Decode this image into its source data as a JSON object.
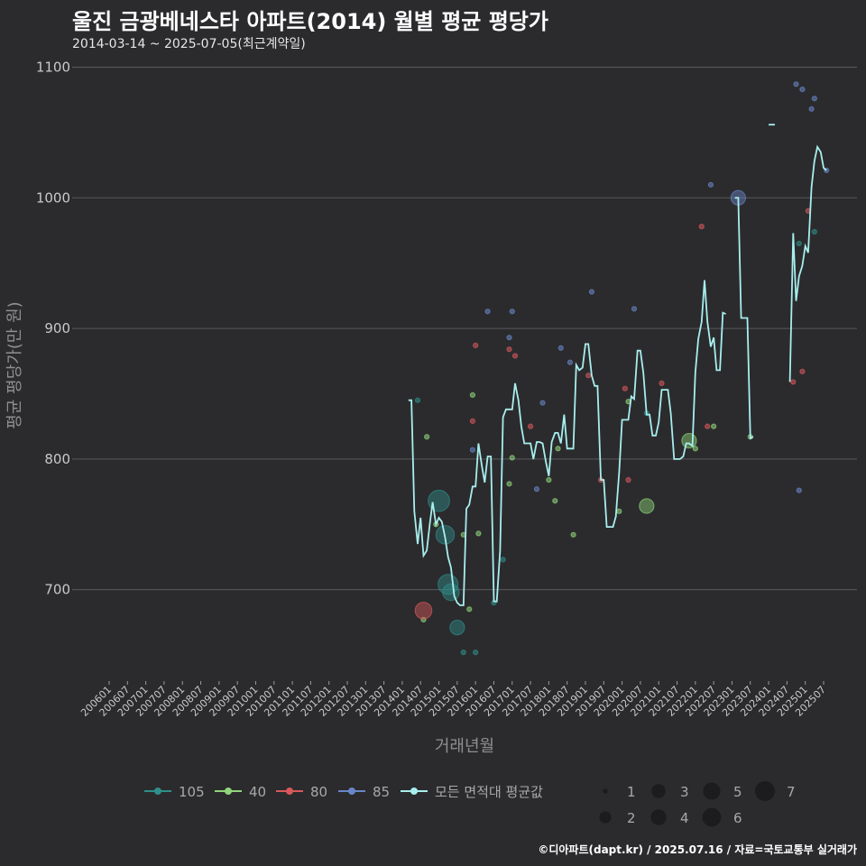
{
  "header": {
    "title": "울진 금광베네스타 아파트(2014) 월별 평균 평당가",
    "subtitle": "2014-03-14 ~ 2025-07-05(최근계약일)"
  },
  "caption": "©디아파트(dapt.kr) / 2025.07.16 / 자료=국토교통부 실거래가",
  "colors": {
    "background": "#2b2b2d",
    "grid": "#5a5a5c",
    "avg_line": "#a8eeee",
    "s105": "#2f8f8a",
    "s40": "#8fd67a",
    "s80": "#d9585c",
    "s85": "#6a86c8"
  },
  "chart_data": {
    "type": "scatter+line",
    "title": "울진 금광베네스타 아파트(2014) 월별 평균 평당가",
    "xlabel": "거래년월",
    "ylabel": "평균 평당가(만 원)",
    "ylim": [
      630,
      1110
    ],
    "yticks": [
      700,
      800,
      900,
      1000,
      1100
    ],
    "x_tick_labels": [
      "200601",
      "200607",
      "200701",
      "200707",
      "200801",
      "200807",
      "200901",
      "200907",
      "201001",
      "201007",
      "201101",
      "201107",
      "201201",
      "201207",
      "201301",
      "201307",
      "201401",
      "201407",
      "201501",
      "201507",
      "201601",
      "201607",
      "201701",
      "201707",
      "201801",
      "201807",
      "201901",
      "201907",
      "202001",
      "202007",
      "202101",
      "202107",
      "202201",
      "202207",
      "202301",
      "202307",
      "202401",
      "202407",
      "202501",
      "202507"
    ],
    "x_unit": "fractional year",
    "xlim": [
      2006.0,
      2025.5
    ],
    "legend_area": [
      {
        "name": "105",
        "color_key": "s105"
      },
      {
        "name": "40",
        "color_key": "s40"
      },
      {
        "name": "80",
        "color_key": "s80"
      },
      {
        "name": "85",
        "color_key": "s85"
      },
      {
        "name": "모든 면적대 평균값",
        "color_key": "avg_line"
      }
    ],
    "legend_size": [
      {
        "label": "1",
        "value": 1
      },
      {
        "label": "2",
        "value": 2
      },
      {
        "label": "3",
        "value": 3
      },
      {
        "label": "4",
        "value": 4
      },
      {
        "label": "5",
        "value": 5
      },
      {
        "label": "6",
        "value": 6
      },
      {
        "label": "7",
        "value": 7
      }
    ],
    "avg_line": [
      [
        2014.17,
        845
      ],
      [
        2014.25,
        845
      ],
      [
        2014.33,
        760
      ],
      [
        2014.42,
        735
      ],
      [
        2014.5,
        755
      ],
      [
        2014.58,
        726
      ],
      [
        2014.67,
        730
      ],
      [
        2014.75,
        750
      ],
      [
        2014.83,
        767
      ],
      [
        2014.92,
        750
      ],
      [
        2015.0,
        755
      ],
      [
        2015.08,
        752
      ],
      [
        2015.17,
        740
      ],
      [
        2015.25,
        725
      ],
      [
        2015.33,
        717
      ],
      [
        2015.42,
        695
      ],
      [
        2015.5,
        690
      ],
      [
        2015.58,
        688
      ],
      [
        2015.67,
        688
      ],
      [
        2015.75,
        762
      ],
      [
        2015.83,
        765
      ],
      [
        2015.92,
        779
      ],
      [
        2016.0,
        779
      ],
      [
        2016.08,
        812
      ],
      [
        2016.17,
        795
      ],
      [
        2016.25,
        782
      ],
      [
        2016.33,
        802
      ],
      [
        2016.42,
        802
      ],
      [
        2016.5,
        691
      ],
      [
        2016.58,
        691
      ],
      [
        2016.67,
        730
      ],
      [
        2016.75,
        832
      ],
      [
        2016.83,
        838
      ],
      [
        2016.92,
        838
      ],
      [
        2017.0,
        838
      ],
      [
        2017.08,
        858
      ],
      [
        2017.17,
        845
      ],
      [
        2017.25,
        825
      ],
      [
        2017.33,
        812
      ],
      [
        2017.42,
        812
      ],
      [
        2017.5,
        812
      ],
      [
        2017.58,
        800
      ],
      [
        2017.67,
        813
      ],
      [
        2017.75,
        813
      ],
      [
        2017.83,
        812
      ],
      [
        2017.92,
        798
      ],
      [
        2018.0,
        787
      ],
      [
        2018.08,
        813
      ],
      [
        2018.17,
        820
      ],
      [
        2018.25,
        820
      ],
      [
        2018.33,
        812
      ],
      [
        2018.42,
        834
      ],
      [
        2018.5,
        808
      ],
      [
        2018.58,
        808
      ],
      [
        2018.67,
        808
      ],
      [
        2018.75,
        872
      ],
      [
        2018.83,
        868
      ],
      [
        2018.92,
        870
      ],
      [
        2019.0,
        888
      ],
      [
        2019.08,
        888
      ],
      [
        2019.17,
        864
      ],
      [
        2019.25,
        856
      ],
      [
        2019.33,
        856
      ],
      [
        2019.42,
        784
      ],
      [
        2019.5,
        784
      ],
      [
        2019.58,
        748
      ],
      [
        2019.67,
        748
      ],
      [
        2019.75,
        748
      ],
      [
        2019.83,
        756
      ],
      [
        2019.92,
        790
      ],
      [
        2020.0,
        830
      ],
      [
        2020.08,
        830
      ],
      [
        2020.17,
        830
      ],
      [
        2020.25,
        848
      ],
      [
        2020.33,
        846
      ],
      [
        2020.42,
        883
      ],
      [
        2020.5,
        883
      ],
      [
        2020.58,
        866
      ],
      [
        2020.67,
        834
      ],
      [
        2020.75,
        834
      ],
      [
        2020.83,
        818
      ],
      [
        2020.92,
        818
      ],
      [
        2021.0,
        828
      ],
      [
        2021.08,
        853
      ],
      [
        2021.17,
        853
      ],
      [
        2021.25,
        853
      ],
      [
        2021.33,
        835
      ],
      [
        2021.42,
        800
      ],
      [
        2021.5,
        800
      ],
      [
        2021.58,
        800
      ],
      [
        2021.67,
        802
      ],
      [
        2021.75,
        812
      ],
      [
        2021.83,
        812
      ],
      [
        2021.92,
        810
      ],
      [
        2022.0,
        866
      ],
      [
        2022.08,
        892
      ],
      [
        2022.17,
        905
      ],
      [
        2022.25,
        937
      ],
      [
        2022.33,
        905
      ],
      [
        2022.42,
        886
      ],
      [
        2022.5,
        893
      ],
      [
        2022.58,
        868
      ],
      [
        2022.67,
        868
      ],
      [
        2022.75,
        912
      ],
      [
        2022.83,
        911
      ],
      [
        null,
        null
      ],
      [
        2023.08,
        1000
      ],
      [
        2023.17,
        1000
      ],
      [
        2023.25,
        908
      ],
      [
        2023.33,
        908
      ],
      [
        2023.42,
        908
      ],
      [
        2023.5,
        816
      ],
      [
        2023.58,
        817
      ],
      [
        null,
        null
      ],
      [
        2024.0,
        1056
      ],
      [
        2024.08,
        1056
      ],
      [
        2024.17,
        1056
      ],
      [
        null,
        null
      ],
      [
        2024.58,
        859
      ],
      [
        2024.67,
        973
      ],
      [
        2024.75,
        921
      ],
      [
        2024.83,
        940
      ],
      [
        2024.92,
        948
      ],
      [
        2025.0,
        963
      ],
      [
        2025.08,
        958
      ],
      [
        2025.17,
        1008
      ],
      [
        2025.25,
        1028
      ],
      [
        2025.33,
        1039
      ],
      [
        2025.42,
        1035
      ],
      [
        2025.5,
        1023
      ],
      [
        2025.58,
        1021
      ]
    ],
    "points": [
      {
        "series": "105",
        "x": 2014.42,
        "y": 845,
        "size": 1
      },
      {
        "series": "105",
        "x": 2015.0,
        "y": 768,
        "size": 6
      },
      {
        "series": "105",
        "x": 2015.17,
        "y": 742,
        "size": 4
      },
      {
        "series": "105",
        "x": 2015.25,
        "y": 704,
        "size": 5
      },
      {
        "series": "105",
        "x": 2015.33,
        "y": 698,
        "size": 3
      },
      {
        "series": "105",
        "x": 2015.5,
        "y": 671,
        "size": 2
      },
      {
        "series": "105",
        "x": 2015.67,
        "y": 652,
        "size": 1
      },
      {
        "series": "105",
        "x": 2016.0,
        "y": 652,
        "size": 1
      },
      {
        "series": "105",
        "x": 2016.5,
        "y": 690,
        "size": 1
      },
      {
        "series": "105",
        "x": 2016.75,
        "y": 723,
        "size": 1
      },
      {
        "series": "105",
        "x": 2020.67,
        "y": 835,
        "size": 1
      },
      {
        "series": "105",
        "x": 2025.25,
        "y": 974,
        "size": 1
      },
      {
        "series": "105",
        "x": 2024.83,
        "y": 965,
        "size": 1
      },
      {
        "series": "40",
        "x": 2014.58,
        "y": 677,
        "size": 1
      },
      {
        "series": "40",
        "x": 2014.67,
        "y": 817,
        "size": 1
      },
      {
        "series": "40",
        "x": 2014.92,
        "y": 750,
        "size": 1
      },
      {
        "series": "40",
        "x": 2015.67,
        "y": 742,
        "size": 1
      },
      {
        "series": "40",
        "x": 2015.83,
        "y": 685,
        "size": 1
      },
      {
        "series": "40",
        "x": 2015.92,
        "y": 849,
        "size": 1
      },
      {
        "series": "40",
        "x": 2016.08,
        "y": 743,
        "size": 1
      },
      {
        "series": "40",
        "x": 2016.92,
        "y": 781,
        "size": 1
      },
      {
        "series": "40",
        "x": 2017.0,
        "y": 801,
        "size": 1
      },
      {
        "series": "40",
        "x": 2018.0,
        "y": 784,
        "size": 1
      },
      {
        "series": "40",
        "x": 2018.17,
        "y": 768,
        "size": 1
      },
      {
        "series": "40",
        "x": 2018.25,
        "y": 808,
        "size": 1
      },
      {
        "series": "40",
        "x": 2018.67,
        "y": 742,
        "size": 1
      },
      {
        "series": "40",
        "x": 2019.92,
        "y": 760,
        "size": 1
      },
      {
        "series": "40",
        "x": 2020.17,
        "y": 844,
        "size": 1
      },
      {
        "series": "40",
        "x": 2020.67,
        "y": 764,
        "size": 2
      },
      {
        "series": "40",
        "x": 2021.83,
        "y": 814,
        "size": 2
      },
      {
        "series": "40",
        "x": 2022.0,
        "y": 808,
        "size": 1
      },
      {
        "series": "40",
        "x": 2022.5,
        "y": 825,
        "size": 1
      },
      {
        "series": "40",
        "x": 2023.5,
        "y": 817,
        "size": 1
      },
      {
        "series": "80",
        "x": 2014.58,
        "y": 684,
        "size": 3
      },
      {
        "series": "80",
        "x": 2015.92,
        "y": 829,
        "size": 1
      },
      {
        "series": "80",
        "x": 2016.0,
        "y": 887,
        "size": 1
      },
      {
        "series": "80",
        "x": 2016.92,
        "y": 884,
        "size": 1
      },
      {
        "series": "80",
        "x": 2017.08,
        "y": 879,
        "size": 1
      },
      {
        "series": "80",
        "x": 2017.5,
        "y": 825,
        "size": 1
      },
      {
        "series": "80",
        "x": 2019.08,
        "y": 864,
        "size": 1
      },
      {
        "series": "80",
        "x": 2019.42,
        "y": 784,
        "size": 1
      },
      {
        "series": "80",
        "x": 2020.08,
        "y": 854,
        "size": 1
      },
      {
        "series": "80",
        "x": 2020.17,
        "y": 784,
        "size": 1
      },
      {
        "series": "80",
        "x": 2021.08,
        "y": 858,
        "size": 1
      },
      {
        "series": "80",
        "x": 2022.17,
        "y": 978,
        "size": 1
      },
      {
        "series": "80",
        "x": 2022.33,
        "y": 825,
        "size": 1
      },
      {
        "series": "80",
        "x": 2024.67,
        "y": 859,
        "size": 1
      },
      {
        "series": "80",
        "x": 2024.92,
        "y": 867,
        "size": 1
      },
      {
        "series": "80",
        "x": 2025.08,
        "y": 990,
        "size": 1
      },
      {
        "series": "85",
        "x": 2015.92,
        "y": 807,
        "size": 1
      },
      {
        "series": "85",
        "x": 2016.33,
        "y": 913,
        "size": 1
      },
      {
        "series": "85",
        "x": 2016.92,
        "y": 893,
        "size": 1
      },
      {
        "series": "85",
        "x": 2017.0,
        "y": 913,
        "size": 1
      },
      {
        "series": "85",
        "x": 2017.67,
        "y": 777,
        "size": 1
      },
      {
        "series": "85",
        "x": 2017.83,
        "y": 843,
        "size": 1
      },
      {
        "series": "85",
        "x": 2018.33,
        "y": 885,
        "size": 1
      },
      {
        "series": "85",
        "x": 2018.58,
        "y": 874,
        "size": 1
      },
      {
        "series": "85",
        "x": 2019.17,
        "y": 928,
        "size": 1
      },
      {
        "series": "85",
        "x": 2020.33,
        "y": 915,
        "size": 1
      },
      {
        "series": "85",
        "x": 2022.42,
        "y": 1010,
        "size": 1
      },
      {
        "series": "85",
        "x": 2023.17,
        "y": 1000,
        "size": 2
      },
      {
        "series": "85",
        "x": 2024.75,
        "y": 1087,
        "size": 1
      },
      {
        "series": "85",
        "x": 2024.92,
        "y": 1083,
        "size": 1
      },
      {
        "series": "85",
        "x": 2025.17,
        "y": 1068,
        "size": 1
      },
      {
        "series": "85",
        "x": 2025.25,
        "y": 1076,
        "size": 1
      },
      {
        "series": "85",
        "x": 2025.58,
        "y": 1021,
        "size": 1
      },
      {
        "series": "85",
        "x": 2024.83,
        "y": 776,
        "size": 1
      }
    ]
  }
}
